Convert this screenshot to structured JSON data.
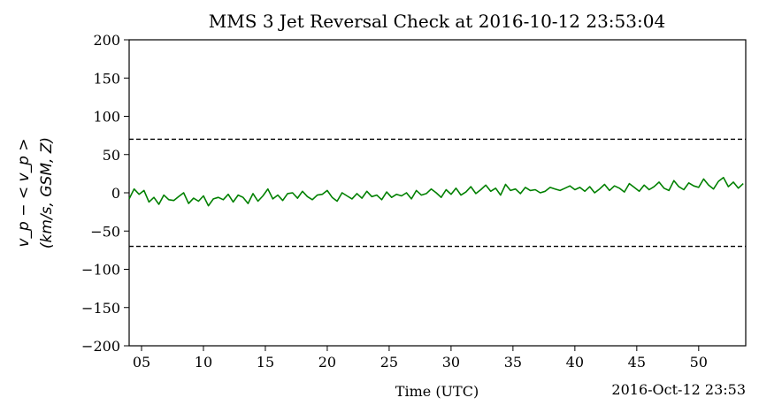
{
  "chart_data": {
    "type": "line",
    "title": "MMS 3 Jet Reversal Check at 2016-10-12 23:53:04",
    "xlabel": "Time (UTC)",
    "ylabel_line1": "v_p − < v_p >",
    "ylabel_line2": "(km/s, GSM, Z)",
    "x_offset_label": "2016-Oct-12 23:53",
    "xlim": [
      4,
      53.8
    ],
    "ylim": [
      -200,
      200
    ],
    "x_ticks": [
      5,
      10,
      15,
      20,
      25,
      30,
      35,
      40,
      45,
      50
    ],
    "x_tick_labels": [
      "05",
      "10",
      "15",
      "20",
      "25",
      "30",
      "35",
      "40",
      "45",
      "50"
    ],
    "y_ticks": [
      -200,
      -150,
      -100,
      -50,
      0,
      50,
      100,
      150,
      200
    ],
    "y_tick_labels": [
      "−200",
      "−150",
      "−100",
      "−50",
      "0",
      "50",
      "100",
      "150",
      "200"
    ],
    "thresholds": [
      70,
      -70
    ],
    "grid": false,
    "series": [
      {
        "color": "#008000",
        "x": [
          4.0,
          4.4,
          4.8,
          5.2,
          5.6,
          6.0,
          6.4,
          6.8,
          7.2,
          7.6,
          8.0,
          8.4,
          8.8,
          9.2,
          9.6,
          10.0,
          10.4,
          10.8,
          11.2,
          11.6,
          12.0,
          12.4,
          12.8,
          13.2,
          13.6,
          14.0,
          14.4,
          14.8,
          15.2,
          15.6,
          16.0,
          16.4,
          16.8,
          17.2,
          17.6,
          18.0,
          18.4,
          18.8,
          19.2,
          19.6,
          20.0,
          20.4,
          20.8,
          21.2,
          21.6,
          22.0,
          22.4,
          22.8,
          23.2,
          23.6,
          24.0,
          24.4,
          24.8,
          25.2,
          25.6,
          26.0,
          26.4,
          26.8,
          27.2,
          27.6,
          28.0,
          28.4,
          28.8,
          29.2,
          29.6,
          30.0,
          30.4,
          30.8,
          31.2,
          31.6,
          32.0,
          32.4,
          32.8,
          33.2,
          33.6,
          34.0,
          34.4,
          34.8,
          35.2,
          35.6,
          36.0,
          36.4,
          36.8,
          37.2,
          37.6,
          38.0,
          38.4,
          38.8,
          39.2,
          39.6,
          40.0,
          40.4,
          40.8,
          41.2,
          41.6,
          42.0,
          42.4,
          42.8,
          43.2,
          43.6,
          44.0,
          44.4,
          44.8,
          45.2,
          45.6,
          46.0,
          46.4,
          46.8,
          47.2,
          47.6,
          48.0,
          48.4,
          48.8,
          49.2,
          49.6,
          50.0,
          50.4,
          50.8,
          51.2,
          51.6,
          52.0,
          52.4,
          52.8,
          53.2,
          53.6
        ],
        "y": [
          -8,
          5,
          -2,
          3,
          -12,
          -6,
          -15,
          -3,
          -9,
          -10,
          -5,
          0,
          -14,
          -7,
          -11,
          -4,
          -17,
          -8,
          -6,
          -9,
          -2,
          -12,
          -3,
          -6,
          -14,
          -1,
          -11,
          -4,
          5,
          -8,
          -3,
          -10,
          -1,
          0,
          -7,
          2,
          -5,
          -9,
          -3,
          -2,
          3,
          -6,
          -11,
          0,
          -4,
          -8,
          -1,
          -7,
          2,
          -5,
          -3,
          -9,
          1,
          -6,
          -2,
          -4,
          0,
          -8,
          3,
          -3,
          -1,
          5,
          0,
          -6,
          4,
          -2,
          6,
          -3,
          1,
          8,
          -1,
          4,
          10,
          2,
          6,
          -3,
          11,
          3,
          5,
          -1,
          7,
          3,
          4,
          0,
          2,
          7,
          5,
          3,
          6,
          9,
          4,
          7,
          2,
          8,
          0,
          5,
          11,
          3,
          9,
          6,
          1,
          12,
          7,
          2,
          10,
          4,
          8,
          14,
          6,
          3,
          16,
          8,
          4,
          13,
          9,
          7,
          18,
          10,
          5,
          15,
          20,
          8,
          14,
          6,
          12
        ]
      }
    ]
  }
}
